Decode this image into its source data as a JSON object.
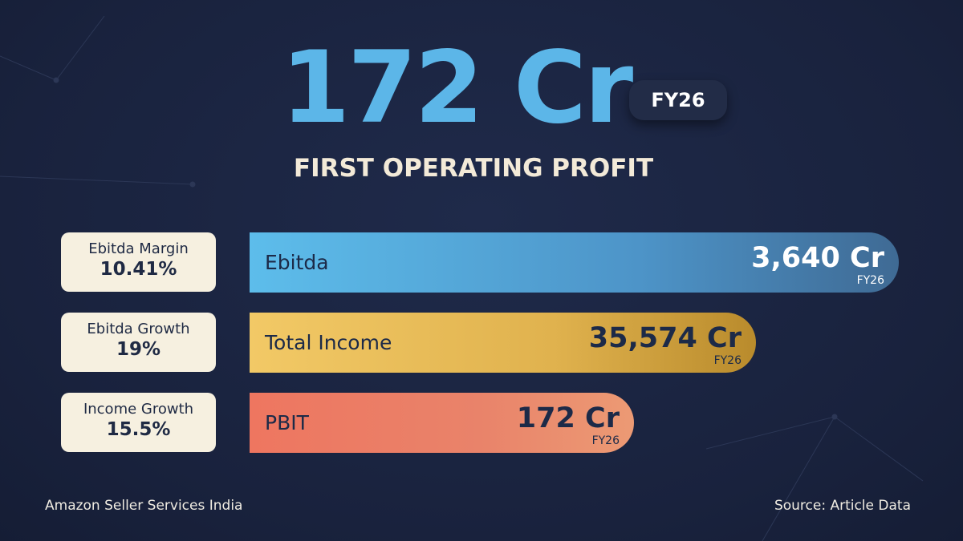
{
  "headline": {
    "value": "172 Cr",
    "badge": "FY26",
    "subtitle": "FIRST OPERATING PROFIT"
  },
  "metrics": [
    {
      "label": "Ebitda Margin",
      "value": "10.41%"
    },
    {
      "label": "Ebitda Growth",
      "value": "19%"
    },
    {
      "label": "Income Growth",
      "value": "15.5%"
    }
  ],
  "bars": [
    {
      "label": "Ebitda",
      "value": "3,640 Cr",
      "period": "FY26"
    },
    {
      "label": "Total Income",
      "value": "35,574 Cr",
      "period": "FY26"
    },
    {
      "label": "PBIT",
      "value": "172 Cr",
      "period": "FY26"
    }
  ],
  "footer": {
    "left": "Amazon Seller Services India",
    "right": "Source: Article Data"
  }
}
